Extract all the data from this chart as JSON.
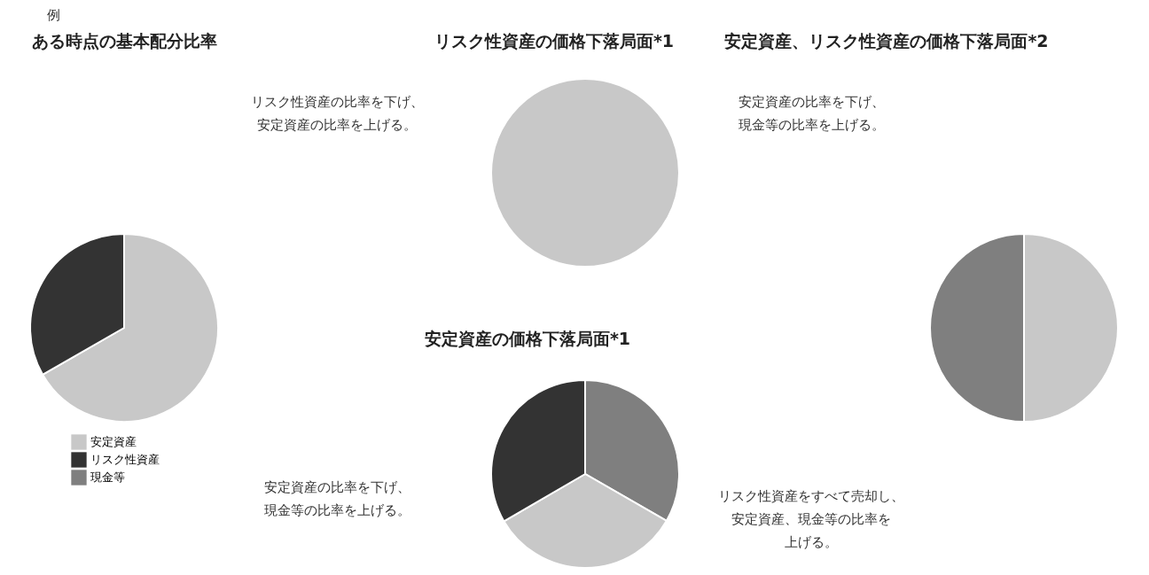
{
  "chart_data": [
    {
      "type": "pie",
      "title": "ある時点の基本配分比率",
      "categories": [
        "安定資産",
        "リスク性資産",
        "現金等"
      ],
      "values": [
        66.7,
        33.3,
        0
      ],
      "colors": [
        "#c8c8c8",
        "#333333",
        "#7f7f7f"
      ],
      "legend": "bottom",
      "annotations": [
        "例"
      ]
    },
    {
      "type": "pie",
      "title": "リスク性資産の価格下落局面*1",
      "categories": [
        null
      ],
      "values": [
        100
      ],
      "colors": [
        "#c8c8c8"
      ],
      "annotations": [
        "リスク性資産の比率を下げ、",
        "安定資産の比率を上げる。"
      ]
    },
    {
      "type": "pie",
      "title": "安定資産の価格下落局面*1",
      "categories": [
        null,
        null,
        null
      ],
      "values": [
        33.3,
        33.3,
        33.4
      ],
      "colors": [
        "#7f7f7f",
        "#c8c8c8",
        "#333333"
      ],
      "annotations": [
        "安定資産の比率を下げ、",
        "現金等の比率を上げる。"
      ]
    },
    {
      "type": "pie",
      "title": "安定資産、リスク性資産の価格下落局面*2",
      "categories": [
        null,
        null
      ],
      "values": [
        50,
        50
      ],
      "colors": [
        "#c8c8c8",
        "#7f7f7f"
      ],
      "annotations": [
        "安定資産の比率を下げ、",
        "現金等の比率を上げる。",
        "リスク性資産をすべて売却し、",
        "安定資産、現金等の比率を",
        "上げる。"
      ]
    }
  ]
}
